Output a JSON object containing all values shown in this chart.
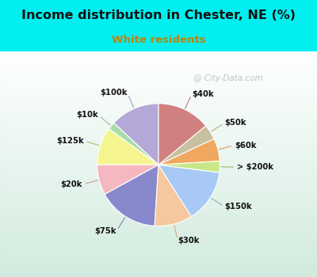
{
  "title": "Income distribution in Chester, NE (%)",
  "subtitle": "White residents",
  "title_color": "#111111",
  "subtitle_color": "#b8860b",
  "bg_cyan": "#00f0f0",
  "bg_chart_color1": "#d0ede0",
  "bg_chart_color2": "#ffffff",
  "watermark": "City-Data.com",
  "labels": [
    "$100k",
    "$10k",
    "$125k",
    "$20k",
    "$75k",
    "$30k",
    "$150k",
    "> $200k",
    "$60k",
    "$50k",
    "$40k"
  ],
  "values": [
    13,
    2,
    10,
    8,
    16,
    10,
    14,
    3,
    6,
    4,
    14
  ],
  "colors": [
    "#b3a8d8",
    "#aaddaa",
    "#f5f590",
    "#f5b8c0",
    "#8888cc",
    "#f5c8a0",
    "#a8c8f5",
    "#c8e888",
    "#f0a860",
    "#c8c0a0",
    "#d08080"
  ],
  "startangle": 90,
  "figsize": [
    4.0,
    3.5
  ],
  "dpi": 100
}
